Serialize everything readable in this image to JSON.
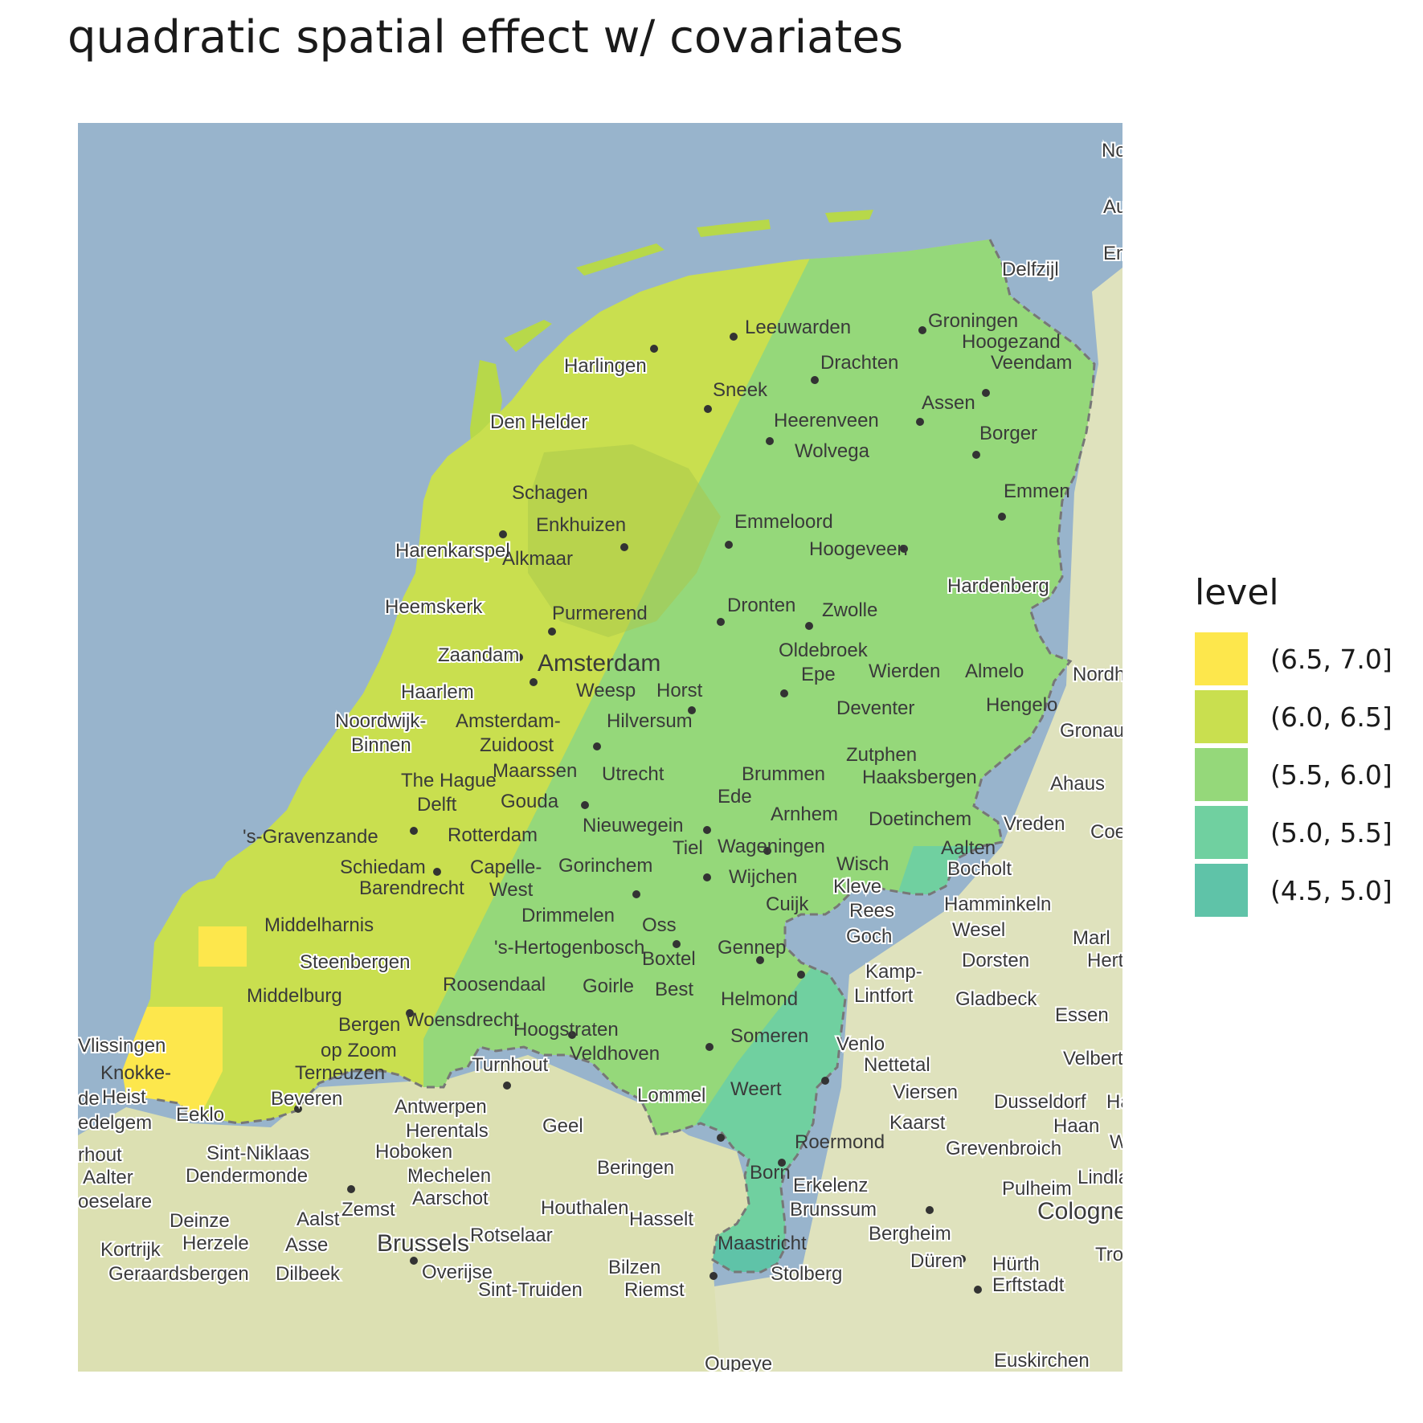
{
  "title": "quadratic spatial effect w/ covariates",
  "legend": {
    "title": "level",
    "items": [
      {
        "label": "(6.5, 7.0]",
        "color": "#fde74c"
      },
      {
        "label": "(6.0, 6.5]",
        "color": "#c9df4f"
      },
      {
        "label": "(5.5, 6.0]",
        "color": "#95d87a"
      },
      {
        "label": "(5.0, 5.5]",
        "color": "#70d0a0"
      },
      {
        "label": "(4.5, 5.0]",
        "color": "#5fc3a8"
      }
    ]
  },
  "colors": {
    "sea": "#98b4cc",
    "land": "#d9dfb4",
    "border": "#777777"
  },
  "map_labels": {
    "leeuwarden": "Leeuwarden",
    "groningen": "Groningen",
    "hoogezand": "Hoogezand",
    "veendam": "Veendam",
    "delfzijl": "Delfzijl",
    "harlingen": "Harlingen",
    "drachten": "Drachten",
    "sneek": "Sneek",
    "heerenveen": "Heerenveen",
    "assen": "Assen",
    "den_helder": "Den Helder",
    "wolvega": "Wolvega",
    "borger": "Borger",
    "schagen": "Schagen",
    "emmen": "Emmen",
    "enkhuizen": "Enkhuizen",
    "emmeloord": "Emmeloord",
    "harenkarspel": "Harenkarspel",
    "alkmaar": "Alkmaar",
    "hoogeveen": "Hoogeveen",
    "hardenberg": "Hardenberg",
    "heemskerk": "Heemskerk",
    "purmerend": "Purmerend",
    "dronten": "Dronten",
    "zwolle": "Zwolle",
    "zaandam": "Zaandam",
    "amsterdam": "Amsterdam",
    "oldebroek": "Oldebroek",
    "epe": "Epe",
    "wierden": "Wierden",
    "almelo": "Almelo",
    "nordhorn": "Nordh",
    "haarlem": "Haarlem",
    "weesp": "Weesp",
    "horst": "Horst",
    "noordwijk": "Noordwijk-",
    "binnen": "Binnen",
    "amsterdam_zuidoost_1": "Amsterdam-",
    "amsterdam_zuidoost_2": "Zuidoost",
    "hilversum": "Hilversum",
    "deventer": "Deventer",
    "hengelo": "Hengelo",
    "gronau": "Gronau",
    "maarssen": "Maarssen",
    "utrecht": "Utrecht",
    "brummen": "Brummen",
    "zutphen": "Zutphen",
    "haaksbergen": "Haaksbergen",
    "ahaus": "Ahaus",
    "the_hague": "The Hague",
    "delft": "Delft",
    "gouda": "Gouda",
    "ede": "Ede",
    "arnhem": "Arnhem",
    "doetinchem": "Doetinchem",
    "vreden": "Vreden",
    "coesfeld": "Coe",
    "gravenzande": "'s-Gravenzande",
    "rotterdam": "Rotterdam",
    "nieuwegein": "Nieuwegein",
    "tiel": "Tiel",
    "wageningen": "Wageningen",
    "aalten": "Aalten",
    "schiedam": "Schiedam",
    "capelle_1": "Capelle-",
    "capelle_2": "West",
    "gorinchem": "Gorinchem",
    "wijchen": "Wijchen",
    "wisch": "Wisch",
    "bocholt": "Bocholt",
    "barendrecht": "Barendrecht",
    "kleve": "Kleve",
    "rees": "Rees",
    "hamminkeln": "Hamminkeln",
    "cuijk": "Cuijk",
    "drimmelen": "Drimmelen",
    "middelharnis": "Middelharnis",
    "oss": "Oss",
    "goch": "Goch",
    "wesel": "Wesel",
    "marl": "Marl",
    "hertogenbosch": "'s-Hertogenbosch",
    "gennep": "Gennep",
    "boxtel": "Boxtel",
    "steenbergen": "Steenbergen",
    "dorsten": "Dorsten",
    "herten": "Hert",
    "kamp_1": "Kamp-",
    "kamp_2": "Lintfort",
    "roosendaal": "Roosendaal",
    "middelburg": "Middelburg",
    "goirle": "Goirle",
    "best": "Best",
    "helmond": "Helmond",
    "gladbeck": "Gladbeck",
    "bergen": "Bergen",
    "essen": "Essen",
    "woensdrecht": "Woensdrecht",
    "hoogstraten": "Hoogstraten",
    "someren": "Someren",
    "venlo": "Venlo",
    "vlissingen": "Vlissingen",
    "op_zoom": "op Zoom",
    "veldhoven": "Veldhoven",
    "nettetal": "Nettetal",
    "velbert": "Velbert",
    "turnhout": "Turnhout",
    "knokke": "Knokke-",
    "terneuzen": "Terneuzen",
    "weert": "Weert",
    "viersen": "Viersen",
    "heist": "Heist",
    "lommel": "Lommel",
    "dusseldorf": "Dusseldorf",
    "ha": "Ha",
    "beveren": "Beveren",
    "eeklo": "Eeklo",
    "antwerpen": "Antwerpen",
    "kaarst": "Kaarst",
    "haan": "Haan",
    "edelgem": "edelgem",
    "herentals": "Herentals",
    "geel": "Geel",
    "roermond": "Roermond",
    "grevenbroich": "Grevenbroich",
    "w": "W",
    "hout": "rhout",
    "sint_niklaas": "Sint-Niklaas",
    "hoboken": "Hoboken",
    "dendermonde": "Dendermonde",
    "mechelen": "Mechelen",
    "beringen": "Beringen",
    "born": "Born",
    "aalter": "Aalter",
    "erkelenz": "Erkelenz",
    "lindlar": "Lindla",
    "pulheim": "Pulheim",
    "aarschot": "Aarschot",
    "oeselare": "oeselare",
    "zemst": "Zemst",
    "houthalen": "Houthalen",
    "brunssum": "Brunssum",
    "cologne": "Cologne",
    "deinze": "Deinze",
    "aalst": "Aalst",
    "hasselt": "Hasselt",
    "rotselaar": "Rotselaar",
    "bergheim": "Bergheim",
    "kortrijk": "Kortrijk",
    "herzele": "Herzele",
    "asse": "Asse",
    "brussels": "Brussels",
    "maastricht": "Maastricht",
    "duren": "Düren",
    "hurth": "Hürth",
    "troisdorf": "Tro",
    "geraardsbergen": "Geraardsbergen",
    "dilbeek": "Dilbeek",
    "overijse": "Overijse",
    "bilzen": "Bilzen",
    "stolberg": "Stolberg",
    "erftstadt": "Erftstadt",
    "sint_truiden": "Sint-Truiden",
    "riemst": "Riemst",
    "euskirchen": "Euskirchen",
    "oupeye": "Oupeye",
    "norden": "No",
    "aurich": "Au",
    "emden": "Em",
    "ede_left": "de"
  }
}
